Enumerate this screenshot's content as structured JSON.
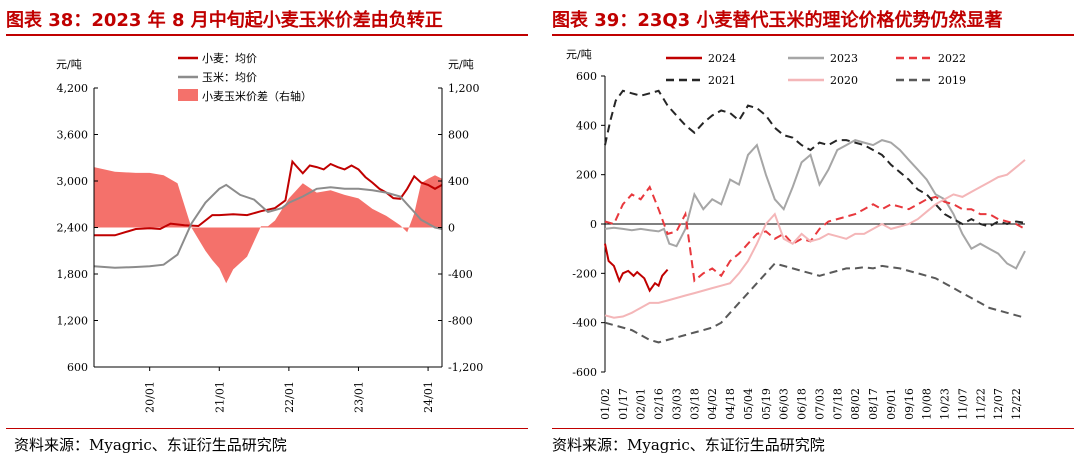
{
  "left_panel": {
    "title": "图表 38：2023 年 8 月中旬起小麦玉米价差由负转正",
    "source": "资料来源：Myagric、东证衍生品研究院"
  },
  "right_panel": {
    "title": "图表 39：23Q3 小麦替代玉米的理论价格优势仍然显著",
    "source": "资料来源：Myagric、东证衍生品研究院"
  },
  "chart_data": [
    {
      "type": "line",
      "title": "图表 38：2023 年 8 月中旬起小麦玉米价差由负转正",
      "left_axis_label": "元/吨",
      "right_axis_label": "元/吨",
      "y_left_ticks": [
        "4,200",
        "3,600",
        "3,000",
        "2,400",
        "1,800",
        "1,200",
        "600"
      ],
      "y_right_ticks": [
        "1,200",
        "800",
        "400",
        "0",
        "-400",
        "-800",
        "-1,200"
      ],
      "ylim_left": [
        600,
        4200
      ],
      "ylim_right": [
        -1200,
        1200
      ],
      "x_ticks": [
        "20/01",
        "21/01",
        "22/01",
        "23/01",
        "24/01"
      ],
      "xlim": [
        2019.2,
        2024.2
      ],
      "legend": [
        "小麦：均价",
        "玉米：均价",
        "小麦玉米价差（右轴）"
      ],
      "legend_position": "top-center",
      "colors": {
        "wheat": "#c00000",
        "corn": "#8c8c8c",
        "spread": "#f4716b"
      },
      "series": [
        {
          "name": "小麦：均价",
          "axis": "left",
          "x": [
            2019.2,
            2019.5,
            2019.8,
            2020.0,
            2020.15,
            2020.3,
            2020.5,
            2020.7,
            2020.9,
            2021.0,
            2021.2,
            2021.4,
            2021.6,
            2021.8,
            2021.95,
            2022.0,
            2022.05,
            2022.1,
            2022.2,
            2022.3,
            2022.4,
            2022.5,
            2022.6,
            2022.7,
            2022.8,
            2022.9,
            2023.0,
            2023.1,
            2023.2,
            2023.3,
            2023.4,
            2023.5,
            2023.6,
            2023.7,
            2023.8,
            2023.9,
            2024.0,
            2024.1,
            2024.2
          ],
          "values": [
            2300,
            2300,
            2380,
            2390,
            2380,
            2450,
            2430,
            2420,
            2560,
            2560,
            2570,
            2560,
            2610,
            2650,
            2750,
            3000,
            3250,
            3200,
            3100,
            3200,
            3180,
            3150,
            3220,
            3180,
            3150,
            3200,
            3150,
            3050,
            2980,
            2900,
            2850,
            2780,
            2770,
            2900,
            3060,
            2980,
            2950,
            2900,
            2950
          ]
        },
        {
          "name": "玉米：均价",
          "axis": "left",
          "x": [
            2019.2,
            2019.5,
            2019.8,
            2020.0,
            2020.2,
            2020.4,
            2020.6,
            2020.8,
            2021.0,
            2021.1,
            2021.3,
            2021.5,
            2021.7,
            2021.9,
            2022.0,
            2022.2,
            2022.4,
            2022.6,
            2022.8,
            2023.0,
            2023.2,
            2023.4,
            2023.6,
            2023.7,
            2023.8,
            2023.9,
            2024.0,
            2024.1,
            2024.2
          ],
          "values": [
            1900,
            1880,
            1890,
            1900,
            1920,
            2050,
            2450,
            2720,
            2900,
            2950,
            2820,
            2760,
            2600,
            2650,
            2720,
            2800,
            2900,
            2920,
            2900,
            2900,
            2880,
            2850,
            2800,
            2700,
            2600,
            2500,
            2450,
            2400,
            2380
          ]
        },
        {
          "name": "小麦玉米价差（右轴）",
          "axis": "right",
          "x": [
            2019.2,
            2019.5,
            2019.8,
            2020.0,
            2020.2,
            2020.4,
            2020.6,
            2020.8,
            2020.9,
            2021.0,
            2021.1,
            2021.2,
            2021.4,
            2021.6,
            2021.7,
            2021.8,
            2022.0,
            2022.2,
            2022.4,
            2022.6,
            2022.8,
            2023.0,
            2023.2,
            2023.4,
            2023.6,
            2023.7,
            2023.8,
            2023.9,
            2024.0,
            2024.1,
            2024.2
          ],
          "values": [
            520,
            480,
            470,
            470,
            450,
            380,
            0,
            -200,
            -280,
            -350,
            -480,
            -360,
            -250,
            10,
            10,
            60,
            250,
            380,
            300,
            320,
            280,
            250,
            160,
            100,
            20,
            -40,
            120,
            380,
            420,
            450,
            420
          ]
        }
      ]
    },
    {
      "type": "line",
      "title": "图表 39：23Q3 小麦替代玉米的理论价格优势仍然显著",
      "ylabel": "元/吨",
      "y_ticks": [
        "600",
        "400",
        "200",
        "0",
        "-200",
        "-400",
        "-600"
      ],
      "ylim": [
        -600,
        600
      ],
      "x_ticks": [
        "01/02",
        "01/17",
        "02/01",
        "02/16",
        "03/03",
        "03/18",
        "04/02",
        "04/18",
        "05/04",
        "05/19",
        "06/03",
        "06/18",
        "07/03",
        "07/18",
        "08/02",
        "08/17",
        "09/01",
        "09/16",
        "10/08",
        "10/23",
        "11/07",
        "11/22",
        "12/07",
        "12/22"
      ],
      "legend": [
        "2024",
        "2023",
        "2022",
        "2021",
        "2020",
        "2019"
      ],
      "legend_position": "top",
      "series": [
        {
          "name": "2024",
          "color": "#c00000",
          "dash": "solid",
          "x": [
            0.0,
            0.2,
            0.5,
            0.8,
            1.0,
            1.3,
            1.6,
            1.8,
            2.2,
            2.5,
            2.8,
            3.0,
            3.2,
            3.5
          ],
          "values": [
            -80,
            -150,
            -170,
            -230,
            -200,
            -190,
            -210,
            -195,
            -220,
            -270,
            -240,
            -250,
            -210,
            -185
          ]
        },
        {
          "name": "2023",
          "color": "#a6a6a6",
          "dash": "solid",
          "x": [
            0.0,
            0.5,
            1.0,
            1.5,
            2.0,
            2.5,
            3.0,
            3.3,
            3.6,
            4.0,
            4.5,
            5.0,
            5.5,
            6.0,
            6.5,
            7.0,
            7.5,
            8.0,
            8.5,
            9.0,
            9.5,
            10.0,
            10.5,
            11.0,
            11.5,
            12.0,
            12.5,
            13.0,
            13.5,
            14.0,
            14.5,
            15.0,
            15.5,
            16.0,
            16.5,
            17.0,
            17.5,
            18.0,
            18.5,
            19.0,
            19.5,
            20.0,
            20.5,
            21.0,
            21.5,
            22.0,
            22.5,
            23.0,
            23.5
          ],
          "values": [
            -20,
            -15,
            -20,
            -25,
            -20,
            -25,
            -30,
            -20,
            -80,
            -90,
            -20,
            120,
            60,
            100,
            80,
            180,
            160,
            280,
            320,
            200,
            100,
            60,
            150,
            250,
            280,
            160,
            220,
            300,
            320,
            340,
            330,
            320,
            340,
            330,
            300,
            260,
            220,
            180,
            120,
            100,
            40,
            -40,
            -100,
            -80,
            -100,
            -120,
            -160,
            -180,
            -110
          ]
        },
        {
          "name": "2022",
          "color": "#e8383d",
          "dash": "dashed",
          "x": [
            0.0,
            0.5,
            1.0,
            1.5,
            2.0,
            2.5,
            3.0,
            3.5,
            4.0,
            4.5,
            5.0,
            5.5,
            6.0,
            6.5,
            7.0,
            7.5,
            8.0,
            8.5,
            9.0,
            9.5,
            10.0,
            10.5,
            11.0,
            11.5,
            12.0,
            12.5,
            13.0,
            13.5,
            14.0,
            14.5,
            15.0,
            15.5,
            16.0,
            16.5,
            17.0,
            17.5,
            18.0,
            18.5,
            19.0,
            19.5,
            20.0,
            20.5,
            21.0,
            21.5,
            22.0,
            22.5,
            23.0,
            23.5
          ],
          "values": [
            10,
            0,
            80,
            120,
            100,
            150,
            60,
            -40,
            -30,
            40,
            -230,
            -200,
            -180,
            -210,
            -150,
            -120,
            -80,
            -40,
            -30,
            -60,
            -40,
            -80,
            -60,
            -70,
            -20,
            10,
            20,
            30,
            40,
            60,
            80,
            60,
            80,
            70,
            60,
            80,
            100,
            110,
            90,
            80,
            60,
            60,
            40,
            40,
            20,
            10,
            0,
            -20
          ]
        },
        {
          "name": "2021",
          "color": "#262626",
          "dash": "dashed",
          "x": [
            0.0,
            0.3,
            0.6,
            1.0,
            1.5,
            2.0,
            2.5,
            3.0,
            3.5,
            4.0,
            4.5,
            5.0,
            5.5,
            6.0,
            6.5,
            7.0,
            7.5,
            8.0,
            8.5,
            9.0,
            9.5,
            10.0,
            10.5,
            11.0,
            11.5,
            12.0,
            12.5,
            13.0,
            13.5,
            14.0,
            14.5,
            15.0,
            15.5,
            16.0,
            16.5,
            17.0,
            17.5,
            18.0,
            18.5,
            19.0,
            19.5,
            20.0,
            20.5,
            21.0,
            21.5,
            22.0,
            22.5,
            23.0,
            23.5
          ],
          "values": [
            320,
            420,
            500,
            540,
            530,
            520,
            530,
            540,
            480,
            440,
            400,
            370,
            410,
            440,
            460,
            450,
            420,
            480,
            470,
            440,
            390,
            360,
            350,
            320,
            300,
            330,
            320,
            340,
            340,
            330,
            320,
            300,
            280,
            240,
            210,
            180,
            140,
            120,
            80,
            40,
            20,
            0,
            20,
            0,
            -10,
            10,
            0,
            10,
            5
          ]
        },
        {
          "name": "2020",
          "color": "#f4b6b8",
          "dash": "solid",
          "x": [
            0.0,
            0.5,
            1.0,
            1.5,
            2.0,
            2.5,
            3.0,
            3.5,
            4.0,
            4.5,
            5.0,
            5.5,
            6.0,
            6.5,
            7.0,
            7.5,
            8.0,
            8.5,
            9.0,
            9.5,
            10.0,
            10.5,
            11.0,
            11.5,
            12.0,
            12.5,
            13.0,
            13.5,
            14.0,
            14.5,
            15.0,
            15.5,
            16.0,
            16.5,
            17.0,
            17.5,
            18.0,
            18.5,
            19.0,
            19.5,
            20.0,
            20.5,
            21.0,
            21.5,
            22.0,
            22.5,
            23.0,
            23.5
          ],
          "values": [
            -370,
            -380,
            -375,
            -360,
            -340,
            -320,
            -320,
            -310,
            -300,
            -290,
            -280,
            -270,
            -260,
            -250,
            -240,
            -200,
            -150,
            -80,
            0,
            40,
            -60,
            -80,
            -40,
            -70,
            -60,
            -40,
            -50,
            -60,
            -40,
            -40,
            -20,
            0,
            -20,
            -10,
            0,
            20,
            50,
            80,
            100,
            120,
            110,
            130,
            150,
            170,
            190,
            200,
            230,
            260
          ]
        },
        {
          "name": "2019",
          "color": "#595959",
          "dash": "dashed",
          "x": [
            0.0,
            0.5,
            1.0,
            1.5,
            2.0,
            2.5,
            3.0,
            3.5,
            4.0,
            4.5,
            5.0,
            5.5,
            6.0,
            6.5,
            7.0,
            7.5,
            8.0,
            8.5,
            9.0,
            9.5,
            10.0,
            10.5,
            11.0,
            11.5,
            12.0,
            12.5,
            13.0,
            13.5,
            14.0,
            14.5,
            15.0,
            15.5,
            16.0,
            16.5,
            17.0,
            17.5,
            18.0,
            18.5,
            19.0,
            19.5,
            20.0,
            20.5,
            21.0,
            21.5,
            22.0,
            22.5,
            23.0,
            23.5
          ],
          "values": [
            -400,
            -410,
            -420,
            -430,
            -450,
            -470,
            -480,
            -470,
            -460,
            -450,
            -440,
            -430,
            -420,
            -400,
            -360,
            -320,
            -280,
            -240,
            -200,
            -160,
            -170,
            -180,
            -190,
            -200,
            -210,
            -200,
            -190,
            -180,
            -180,
            -175,
            -180,
            -170,
            -175,
            -180,
            -190,
            -200,
            -210,
            -220,
            -240,
            -260,
            -280,
            -300,
            -320,
            -340,
            -350,
            -360,
            -370,
            -380
          ]
        }
      ]
    }
  ]
}
